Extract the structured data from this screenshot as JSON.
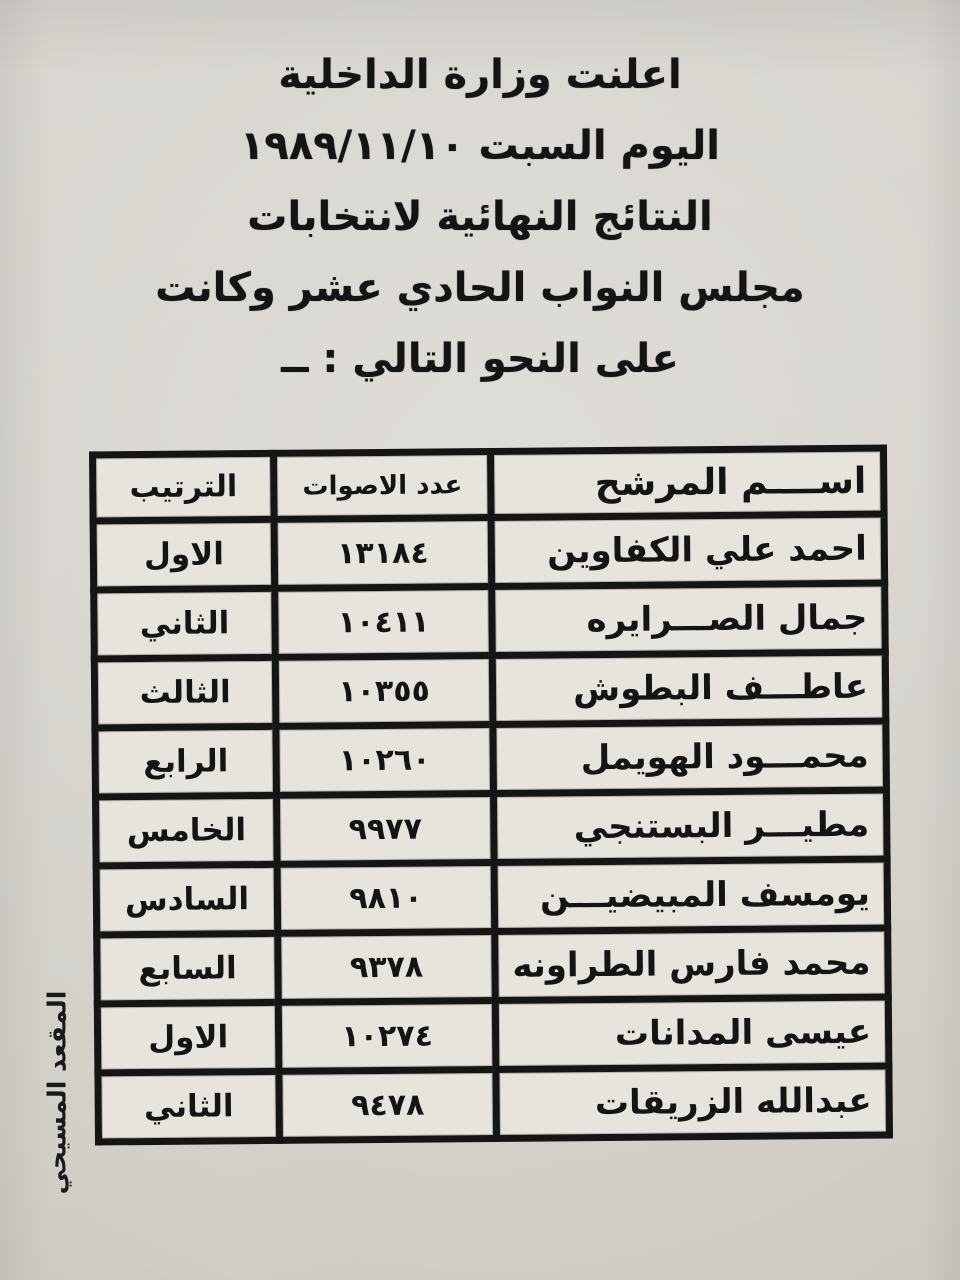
{
  "document": {
    "kind": "scanned-announcement",
    "header_lines": [
      "اعلنت وزارة الداخلية",
      "اليوم السبت ١٩٨٩/١١/١٠",
      "النتائج النهائية لانتخابات",
      "مجلس النواب الحادي عشر وكانت",
      "على النحو التالي : ــ"
    ],
    "side_note": "المقعد المسيحي"
  },
  "table": {
    "headers": {
      "name": "اســــم المرشح",
      "votes": "عدد الاصوات",
      "rank": "الترتيب"
    },
    "rows": [
      {
        "name": "احمد علي الكفاوين",
        "votes": "١٣١٨٤",
        "rank": "الاول"
      },
      {
        "name": "جمال الصـــرايره",
        "votes": "١٠٤١١",
        "rank": "الثاني"
      },
      {
        "name": "عاطـــف البطوش",
        "votes": "١٠٣٥٥",
        "rank": "الثالث"
      },
      {
        "name": "محمـــود الهويمل",
        "votes": "١٠٢٦٠",
        "rank": "الرابع"
      },
      {
        "name": "مطيـــر البستنجي",
        "votes": "٩٩٧٧",
        "rank": "الخامس"
      },
      {
        "name": "يومسف المبيضيـــن",
        "votes": "٩٨١٠",
        "rank": "السادس"
      },
      {
        "name": "محمد فارس الطراونه",
        "votes": "٩٣٧٨",
        "rank": "السابع"
      },
      {
        "name": "عيسى المدانات",
        "votes": "١٠٢٧٤",
        "rank": "الاول"
      },
      {
        "name": "عبدالله الزريقات",
        "votes": "٩٤٧٨",
        "rank": "الثاني"
      }
    ]
  },
  "colors": {
    "paper": "#d6d3cd",
    "cell_background": "#e7e4dd",
    "ink": "#141414",
    "table_border": "#151515"
  }
}
